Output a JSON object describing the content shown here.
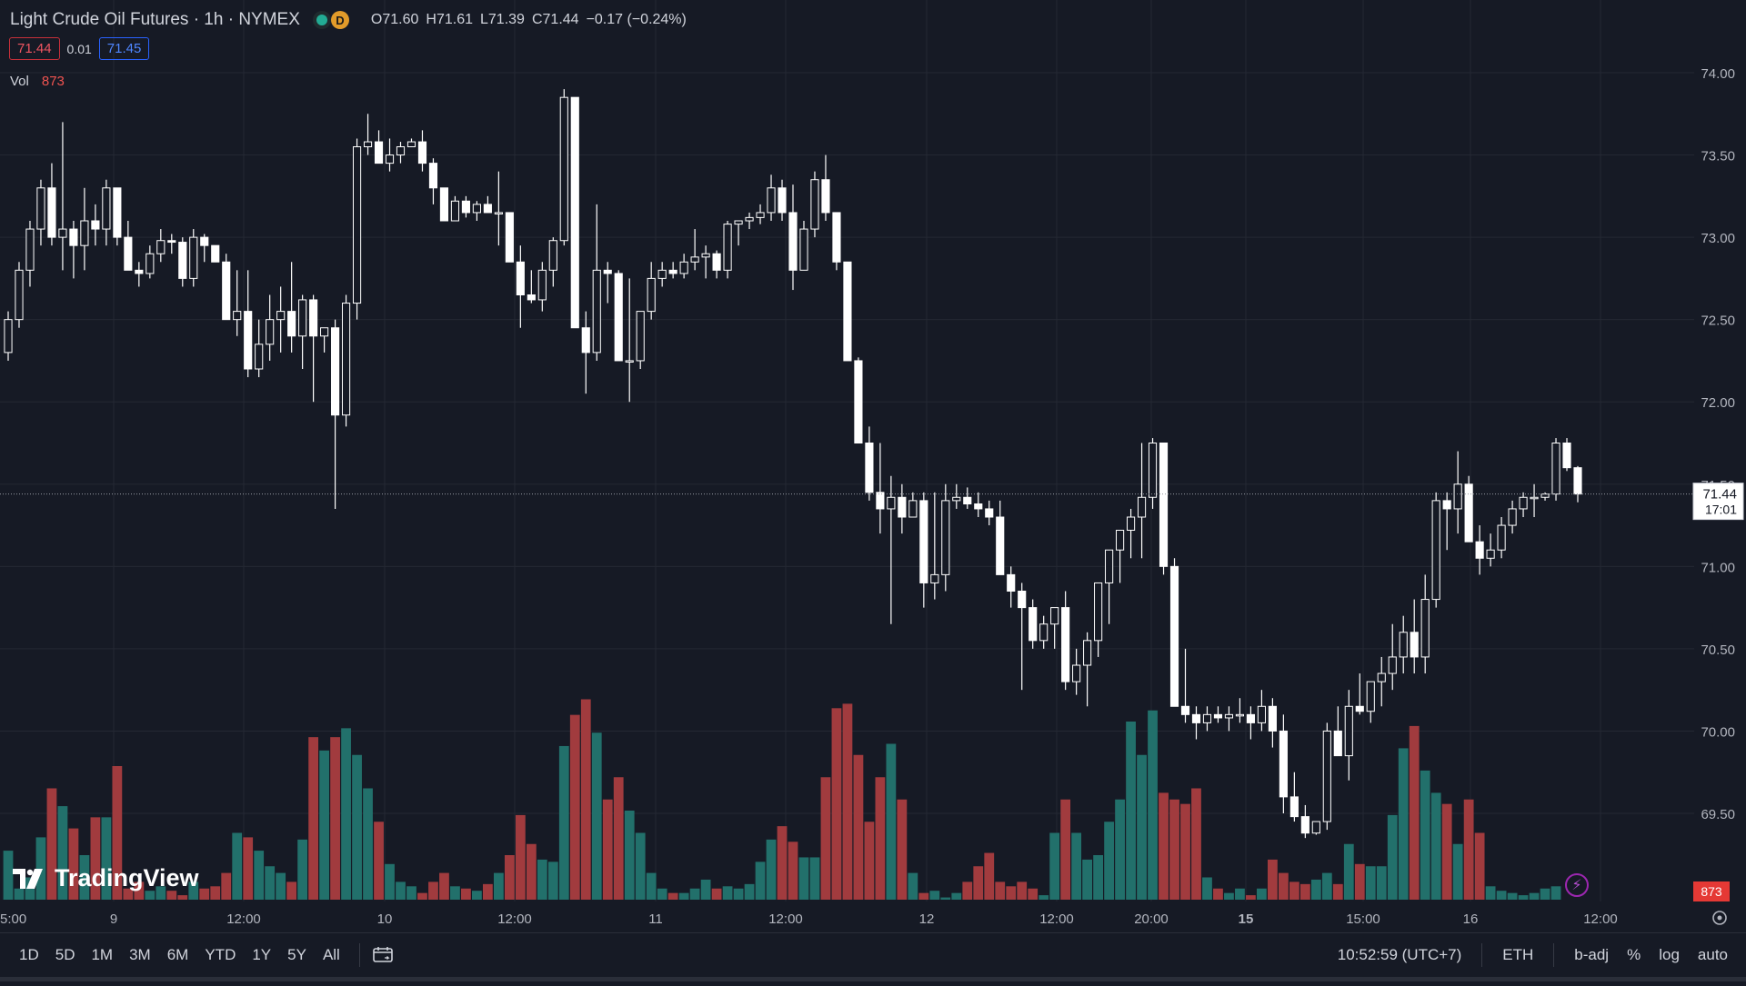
{
  "header": {
    "title": "Light Crude Oil Futures · 1h · NYMEX",
    "delay_badge": "D",
    "ohlc": [
      {
        "k": "O",
        "v": "71.60"
      },
      {
        "k": "H",
        "v": "71.61"
      },
      {
        "k": "L",
        "v": "71.39"
      },
      {
        "k": "C",
        "v": "71.44"
      }
    ],
    "change": "−0.17 (−0.24%)"
  },
  "quotes": {
    "sell": "71.44",
    "spread": "0.01",
    "buy": "71.45"
  },
  "volume_legend": {
    "label": "Vol",
    "value": "873"
  },
  "logo": {
    "text": "TradingView"
  },
  "price_label": {
    "price": "71.44",
    "countdown": "17:01"
  },
  "volume_label": "873",
  "toolbar": {
    "timeframes": [
      "1D",
      "5D",
      "1M",
      "3M",
      "6M",
      "YTD",
      "1Y",
      "5Y",
      "All"
    ],
    "clock": "10:52:59 (UTC+7)",
    "session": "ETH",
    "adj": "b-adj",
    "percent": "%",
    "log": "log",
    "auto": "auto"
  },
  "colors": {
    "background": "#161a25",
    "grid": "#242833",
    "up_candle": "#ffffff",
    "down_candle": "#ffffff",
    "candle_outline": "#ffffff",
    "volume_up": "#22706b",
    "volume_down": "#a13b3e",
    "axis_text": "#b2b5be",
    "last_price_line": "#9598a1"
  },
  "chart_data": {
    "type": "candlestick",
    "y_axis": {
      "ticks": [
        "74.00",
        "73.50",
        "73.00",
        "72.50",
        "72.00",
        "71.50",
        "71.00",
        "70.50",
        "70.00",
        "69.50"
      ],
      "range": [
        69.3,
        74.1
      ]
    },
    "x_axis_labels": [
      {
        "label": "5:00",
        "bold": false
      },
      {
        "label": "9",
        "bold": false
      },
      {
        "label": "12:00",
        "bold": false
      },
      {
        "label": "10",
        "bold": false
      },
      {
        "label": "12:00",
        "bold": false
      },
      {
        "label": "11",
        "bold": false
      },
      {
        "label": "12:00",
        "bold": false
      },
      {
        "label": "12",
        "bold": false
      },
      {
        "label": "12:00",
        "bold": false
      },
      {
        "label": "20:00",
        "bold": false
      },
      {
        "label": "15",
        "bold": true
      },
      {
        "label": "15:00",
        "bold": false
      },
      {
        "label": "16",
        "bold": false
      },
      {
        "label": "12:00",
        "bold": false
      }
    ],
    "last_price": 71.44,
    "candles_ohlc": [
      [
        72.3,
        72.55,
        72.25,
        72.5
      ],
      [
        72.5,
        72.85,
        72.45,
        72.8
      ],
      [
        72.8,
        73.1,
        72.7,
        73.05
      ],
      [
        73.05,
        73.35,
        72.95,
        73.3
      ],
      [
        73.3,
        73.45,
        72.95,
        73.0
      ],
      [
        73.0,
        73.7,
        72.8,
        73.05
      ],
      [
        73.05,
        73.1,
        72.75,
        72.95
      ],
      [
        72.95,
        73.3,
        72.8,
        73.1
      ],
      [
        73.1,
        73.2,
        72.95,
        73.05
      ],
      [
        73.05,
        73.35,
        72.95,
        73.3
      ],
      [
        73.3,
        73.3,
        72.95,
        73.0
      ],
      [
        73.0,
        73.1,
        72.8,
        72.8
      ],
      [
        72.8,
        72.85,
        72.7,
        72.78
      ],
      [
        72.78,
        72.95,
        72.75,
        72.9
      ],
      [
        72.9,
        73.05,
        72.85,
        72.98
      ],
      [
        72.98,
        73.02,
        72.9,
        72.97
      ],
      [
        72.97,
        73.0,
        72.7,
        72.75
      ],
      [
        72.75,
        73.05,
        72.7,
        73.0
      ],
      [
        73.0,
        73.02,
        72.85,
        72.95
      ],
      [
        72.95,
        72.95,
        72.85,
        72.85
      ],
      [
        72.85,
        72.9,
        72.5,
        72.5
      ],
      [
        72.5,
        72.8,
        72.4,
        72.55
      ],
      [
        72.55,
        72.8,
        72.15,
        72.2
      ],
      [
        72.2,
        72.5,
        72.15,
        72.35
      ],
      [
        72.35,
        72.65,
        72.25,
        72.5
      ],
      [
        72.5,
        72.7,
        72.3,
        72.55
      ],
      [
        72.55,
        72.85,
        72.3,
        72.4
      ],
      [
        72.4,
        72.65,
        72.2,
        72.62
      ],
      [
        72.62,
        72.65,
        72.0,
        72.4
      ],
      [
        72.4,
        72.45,
        72.3,
        72.45
      ],
      [
        72.45,
        72.5,
        71.35,
        71.92
      ],
      [
        71.92,
        72.65,
        71.85,
        72.6
      ],
      [
        72.6,
        73.6,
        72.5,
        73.55
      ],
      [
        73.55,
        73.75,
        73.5,
        73.58
      ],
      [
        73.58,
        73.65,
        73.45,
        73.45
      ],
      [
        73.45,
        73.6,
        73.4,
        73.5
      ],
      [
        73.5,
        73.58,
        73.45,
        73.55
      ],
      [
        73.55,
        73.6,
        73.55,
        73.58
      ],
      [
        73.58,
        73.65,
        73.4,
        73.45
      ],
      [
        73.45,
        73.48,
        73.2,
        73.3
      ],
      [
        73.3,
        73.3,
        73.1,
        73.1
      ],
      [
        73.1,
        73.25,
        73.1,
        73.22
      ],
      [
        73.22,
        73.25,
        73.12,
        73.15
      ],
      [
        73.15,
        73.22,
        73.1,
        73.2
      ],
      [
        73.2,
        73.25,
        73.15,
        73.15
      ],
      [
        73.15,
        73.4,
        72.95,
        73.15
      ],
      [
        73.15,
        73.15,
        72.85,
        72.85
      ],
      [
        72.85,
        72.95,
        72.45,
        72.65
      ],
      [
        72.65,
        72.8,
        72.6,
        72.62
      ],
      [
        72.62,
        72.85,
        72.55,
        72.8
      ],
      [
        72.8,
        73.0,
        72.7,
        72.98
      ],
      [
        72.98,
        73.9,
        72.95,
        73.85
      ],
      [
        73.85,
        73.85,
        72.45,
        72.45
      ],
      [
        72.45,
        72.55,
        72.05,
        72.3
      ],
      [
        72.3,
        73.2,
        72.25,
        72.8
      ],
      [
        72.8,
        72.85,
        72.6,
        72.78
      ],
      [
        72.78,
        72.8,
        72.35,
        72.25
      ],
      [
        72.25,
        72.75,
        72.0,
        72.25
      ],
      [
        72.25,
        72.55,
        72.2,
        72.55
      ],
      [
        72.55,
        72.85,
        72.5,
        72.75
      ],
      [
        72.75,
        72.85,
        72.7,
        72.8
      ],
      [
        72.8,
        72.85,
        72.75,
        72.78
      ],
      [
        72.78,
        72.9,
        72.75,
        72.85
      ],
      [
        72.85,
        73.05,
        72.8,
        72.88
      ],
      [
        72.88,
        72.95,
        72.75,
        72.9
      ],
      [
        72.9,
        72.92,
        72.75,
        72.8
      ],
      [
        72.8,
        73.1,
        72.75,
        73.08
      ],
      [
        73.08,
        73.1,
        72.95,
        73.1
      ],
      [
        73.1,
        73.15,
        73.05,
        73.12
      ],
      [
        73.12,
        73.2,
        73.08,
        73.15
      ],
      [
        73.15,
        73.38,
        73.1,
        73.3
      ],
      [
        73.3,
        73.35,
        73.1,
        73.15
      ],
      [
        73.15,
        73.32,
        72.68,
        72.8
      ],
      [
        72.8,
        73.1,
        72.8,
        73.05
      ],
      [
        73.05,
        73.4,
        73.0,
        73.35
      ],
      [
        73.35,
        73.5,
        73.1,
        73.15
      ],
      [
        73.15,
        73.15,
        72.8,
        72.85
      ],
      [
        72.85,
        72.85,
        72.25,
        72.25
      ],
      [
        72.25,
        72.27,
        71.75,
        71.75
      ],
      [
        71.75,
        71.85,
        71.4,
        71.45
      ],
      [
        71.45,
        71.75,
        71.2,
        71.35
      ],
      [
        71.35,
        71.55,
        70.65,
        71.42
      ],
      [
        71.42,
        71.5,
        71.2,
        71.3
      ],
      [
        71.3,
        71.45,
        71.3,
        71.4
      ],
      [
        71.4,
        71.45,
        70.75,
        70.9
      ],
      [
        70.9,
        71.45,
        70.8,
        70.95
      ],
      [
        70.95,
        71.5,
        70.85,
        71.4
      ],
      [
        71.4,
        71.5,
        71.35,
        71.42
      ],
      [
        71.42,
        71.48,
        71.35,
        71.38
      ],
      [
        71.38,
        71.45,
        71.3,
        71.35
      ],
      [
        71.35,
        71.4,
        71.25,
        71.3
      ],
      [
        71.3,
        71.4,
        70.95,
        70.95
      ],
      [
        70.95,
        71.0,
        70.75,
        70.85
      ],
      [
        70.85,
        70.9,
        70.25,
        70.75
      ],
      [
        70.75,
        70.8,
        70.5,
        70.55
      ],
      [
        70.55,
        70.7,
        70.5,
        70.65
      ],
      [
        70.65,
        70.75,
        70.5,
        70.75
      ],
      [
        70.75,
        70.85,
        70.25,
        70.3
      ],
      [
        70.3,
        70.5,
        70.22,
        70.4
      ],
      [
        70.4,
        70.6,
        70.15,
        70.55
      ],
      [
        70.55,
        70.85,
        70.45,
        70.9
      ],
      [
        70.9,
        71.05,
        70.65,
        71.1
      ],
      [
        71.1,
        71.2,
        70.9,
        71.22
      ],
      [
        71.22,
        71.35,
        71.05,
        71.3
      ],
      [
        71.3,
        71.75,
        71.05,
        71.42
      ],
      [
        71.42,
        71.78,
        71.35,
        71.75
      ],
      [
        71.75,
        71.75,
        70.95,
        71.0
      ],
      [
        71.0,
        71.05,
        70.15,
        70.15
      ],
      [
        70.15,
        70.5,
        70.05,
        70.1
      ],
      [
        70.1,
        70.15,
        69.95,
        70.05
      ],
      [
        70.05,
        70.15,
        70.0,
        70.1
      ],
      [
        70.1,
        70.15,
        70.05,
        70.08
      ],
      [
        70.08,
        70.15,
        70.0,
        70.1
      ],
      [
        70.1,
        70.2,
        70.05,
        70.1
      ],
      [
        70.1,
        70.15,
        69.95,
        70.05
      ],
      [
        70.05,
        70.25,
        70.0,
        70.15
      ],
      [
        70.15,
        70.2,
        69.9,
        70.0
      ],
      [
        70.0,
        70.1,
        69.5,
        69.6
      ],
      [
        69.6,
        69.75,
        69.45,
        69.48
      ],
      [
        69.48,
        69.55,
        69.35,
        69.38
      ],
      [
        69.38,
        69.45,
        69.37,
        69.45
      ],
      [
        69.45,
        70.05,
        69.4,
        70.0
      ],
      [
        70.0,
        70.15,
        69.85,
        69.85
      ],
      [
        69.85,
        70.25,
        69.7,
        70.15
      ],
      [
        70.15,
        70.35,
        70.1,
        70.12
      ],
      [
        70.12,
        70.3,
        70.05,
        70.3
      ],
      [
        70.3,
        70.45,
        70.15,
        70.35
      ],
      [
        70.35,
        70.65,
        70.25,
        70.45
      ],
      [
        70.45,
        70.7,
        70.35,
        70.6
      ],
      [
        70.6,
        70.8,
        70.35,
        70.45
      ],
      [
        70.45,
        70.95,
        70.35,
        70.8
      ],
      [
        70.8,
        71.45,
        70.75,
        71.4
      ],
      [
        71.4,
        71.45,
        71.1,
        71.35
      ],
      [
        71.35,
        71.7,
        71.2,
        71.5
      ],
      [
        71.5,
        71.55,
        71.2,
        71.15
      ],
      [
        71.15,
        71.25,
        70.95,
        71.05
      ],
      [
        71.05,
        71.2,
        71.0,
        71.1
      ],
      [
        71.1,
        71.3,
        71.05,
        71.25
      ],
      [
        71.25,
        71.4,
        71.2,
        71.35
      ],
      [
        71.35,
        71.45,
        71.3,
        71.42
      ],
      [
        71.42,
        71.5,
        71.3,
        71.42
      ],
      [
        71.42,
        71.45,
        71.4,
        71.44
      ],
      [
        71.44,
        71.78,
        71.4,
        71.75
      ],
      [
        71.75,
        71.78,
        71.58,
        71.6
      ],
      [
        71.6,
        71.61,
        71.39,
        71.44
      ]
    ],
    "volume_levels": [
      0.22,
      0.05,
      0.1,
      0.28,
      0.5,
      0.42,
      0.32,
      0.2,
      0.37,
      0.37,
      0.6,
      0.05,
      0.08,
      0.04,
      0.06,
      0.04,
      0.02,
      0.08,
      0.05,
      0.06,
      0.12,
      0.3,
      0.28,
      0.22,
      0.15,
      0.12,
      0.08,
      0.27,
      0.73,
      0.67,
      0.73,
      0.77,
      0.65,
      0.5,
      0.35,
      0.16,
      0.08,
      0.06,
      0.03,
      0.08,
      0.12,
      0.06,
      0.05,
      0.04,
      0.07,
      0.12,
      0.2,
      0.38,
      0.25,
      0.18,
      0.17,
      0.69,
      0.83,
      0.9,
      0.75,
      0.45,
      0.55,
      0.4,
      0.3,
      0.12,
      0.05,
      0.03,
      0.03,
      0.05,
      0.09,
      0.05,
      0.06,
      0.05,
      0.07,
      0.17,
      0.27,
      0.33,
      0.26,
      0.19,
      0.19,
      0.55,
      0.86,
      0.88,
      0.65,
      0.35,
      0.55,
      0.7,
      0.45,
      0.12,
      0.03,
      0.04,
      0.01,
      0.03,
      0.08,
      0.15,
      0.21,
      0.08,
      0.06,
      0.08,
      0.05,
      0.02,
      0.3,
      0.45,
      0.3,
      0.18,
      0.2,
      0.35,
      0.45,
      0.8,
      0.65,
      0.85,
      0.48,
      0.45,
      0.43,
      0.5,
      0.1,
      0.05,
      0.03,
      0.05,
      0.02,
      0.05,
      0.18,
      0.12,
      0.08,
      0.07,
      0.09,
      0.12,
      0.07,
      0.25,
      0.16,
      0.15,
      0.15,
      0.38,
      0.68,
      0.78,
      0.58,
      0.48,
      0.43,
      0.25,
      0.45,
      0.3,
      0.06,
      0.04,
      0.03,
      0.02,
      0.03,
      0.05,
      0.06
    ]
  }
}
